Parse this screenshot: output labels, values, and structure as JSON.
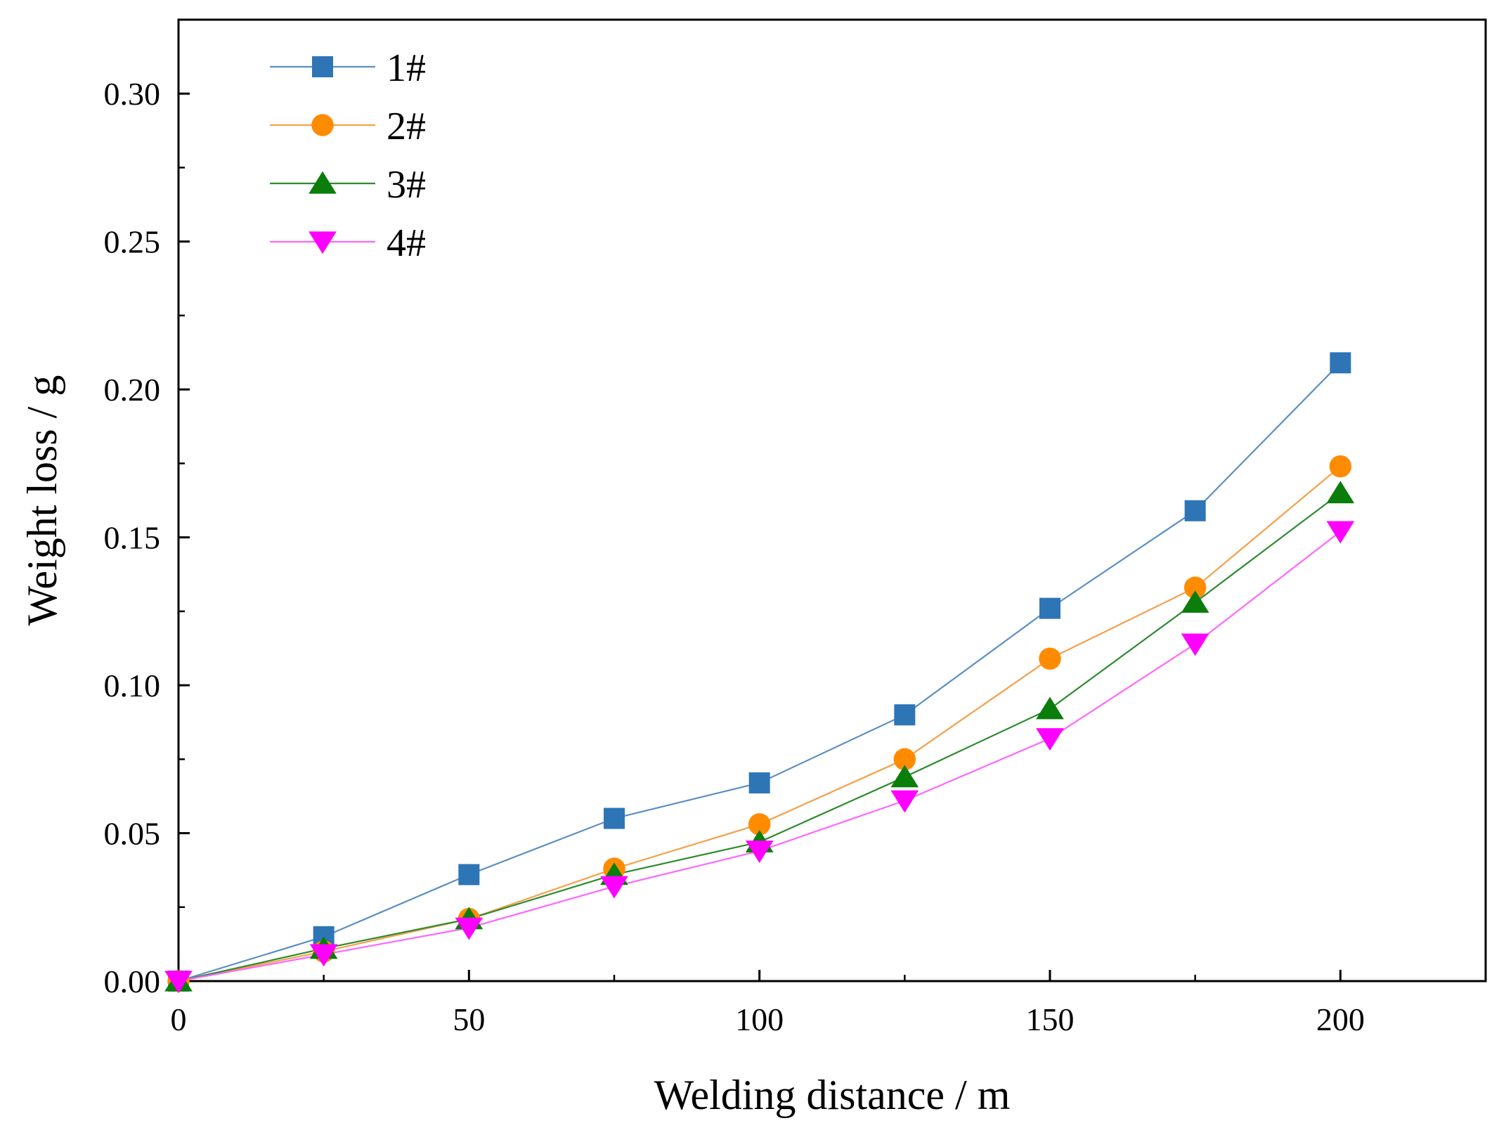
{
  "chart_data": {
    "type": "line",
    "title": "",
    "xlabel": "Welding distance / m",
    "ylabel": "Weight loss / g",
    "xlim": [
      0,
      225
    ],
    "ylim": [
      0,
      0.325
    ],
    "x_ticks": [
      0,
      50,
      100,
      150,
      200
    ],
    "x_tick_labels": [
      "0",
      "50",
      "100",
      "150",
      "200"
    ],
    "y_ticks": [
      0.0,
      0.05,
      0.1,
      0.15,
      0.2,
      0.25,
      0.3
    ],
    "y_tick_labels": [
      "0.00",
      "0.05",
      "0.10",
      "0.15",
      "0.20",
      "0.25",
      "0.30"
    ],
    "legend_position": "top-left",
    "x": [
      0,
      25,
      50,
      75,
      100,
      125,
      150,
      175,
      200
    ],
    "series": [
      {
        "name": "1#",
        "marker": "square",
        "color": "#2e75b6",
        "line_color": "#5b8fc4",
        "values": [
          0.0,
          0.015,
          0.036,
          0.055,
          0.067,
          0.09,
          0.126,
          0.159,
          0.209
        ]
      },
      {
        "name": "2#",
        "marker": "circle",
        "color": "#ff8c00",
        "line_color": "#f5a04a",
        "values": [
          0.0,
          0.01,
          0.021,
          0.038,
          0.053,
          0.075,
          0.109,
          0.133,
          0.174
        ]
      },
      {
        "name": "3#",
        "marker": "triangle-up",
        "color": "#0a7d0a",
        "line_color": "#2e8b2e",
        "values": [
          0.0,
          0.011,
          0.021,
          0.036,
          0.047,
          0.069,
          0.092,
          0.128,
          0.165
        ]
      },
      {
        "name": "4#",
        "marker": "triangle-down",
        "color": "#ff00ff",
        "line_color": "#ff66ff",
        "values": [
          0.0,
          0.009,
          0.018,
          0.032,
          0.044,
          0.061,
          0.082,
          0.114,
          0.152
        ]
      }
    ]
  }
}
